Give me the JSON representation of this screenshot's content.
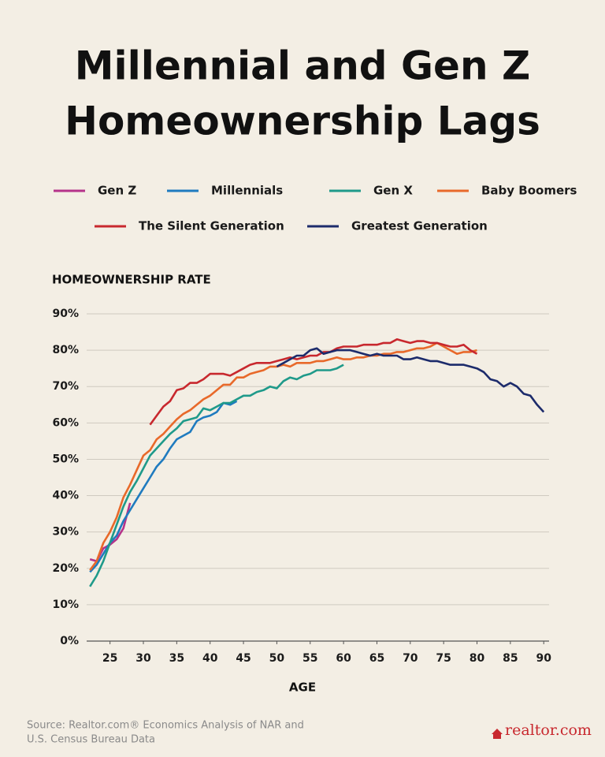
{
  "chart_data": {
    "type": "line",
    "title": [
      "Millennial and Gen Z",
      "Homeownership Lags"
    ],
    "y_label": "HOMEOWNERSHIP RATE",
    "x_label": "AGE",
    "source": [
      "Source: Realtor.com® Economics Analysis of NAR and",
      "U.S. Census Bureau Data"
    ],
    "logo": "realtor.com",
    "xlim": [
      21.5,
      90.8
    ],
    "ylim": [
      0,
      90
    ],
    "xticks": [
      25,
      30,
      35,
      40,
      45,
      50,
      55,
      60,
      65,
      70,
      75,
      80,
      85,
      90
    ],
    "yticks": [
      {
        "value": 0,
        "label": "0%"
      },
      {
        "value": 10,
        "label": "10%"
      },
      {
        "value": 20,
        "label": "20%"
      },
      {
        "value": 30,
        "label": "30%"
      },
      {
        "value": 40,
        "label": "40%"
      },
      {
        "value": 50,
        "label": "50%"
      },
      {
        "value": 60,
        "label": "60%"
      },
      {
        "value": 70,
        "label": "70%"
      },
      {
        "value": 80,
        "label": "80%"
      },
      {
        "value": 90,
        "label": "90%"
      }
    ],
    "grid": true,
    "series": [
      {
        "name": "Gen Z",
        "color": "#b5338a",
        "x": [
          22,
          23,
          24,
          25,
          26,
          27,
          28
        ],
        "values": [
          22.5,
          22,
          25.5,
          26.5,
          28,
          31,
          38
        ]
      },
      {
        "name": "Millennials",
        "color": "#1f7bbf",
        "x": [
          22,
          23,
          24,
          25,
          26,
          27,
          28,
          29,
          30,
          31,
          32,
          33,
          34,
          35,
          36,
          37,
          38,
          39,
          40,
          41,
          42,
          43,
          44
        ],
        "values": [
          19,
          21,
          24,
          27,
          29,
          33,
          36,
          39,
          42,
          45,
          48,
          50,
          53,
          55.5,
          56.5,
          57.5,
          60.5,
          61.5,
          62,
          63,
          65.5,
          65,
          66
        ]
      },
      {
        "name": "Gen X",
        "color": "#1f9a8a",
        "x": [
          22,
          23,
          24,
          25,
          26,
          27,
          28,
          29,
          30,
          31,
          32,
          33,
          34,
          35,
          36,
          37,
          38,
          39,
          40,
          41,
          42,
          43,
          44,
          45,
          46,
          47,
          48,
          49,
          50,
          51,
          52,
          53,
          54,
          55,
          56,
          57,
          58,
          59,
          60
        ],
        "values": [
          15,
          18,
          22,
          27,
          32,
          37,
          41,
          44,
          47.5,
          51,
          53,
          55,
          57,
          58.5,
          60.5,
          61,
          61.5,
          64,
          63.5,
          64.5,
          65.5,
          65.5,
          66.5,
          67.5,
          67.5,
          68.5,
          69,
          70,
          69.5,
          71.5,
          72.5,
          72,
          73,
          73.5,
          74.5,
          74.5,
          74.5,
          75,
          76
        ]
      },
      {
        "name": "Baby Boomers",
        "color": "#e8692a",
        "x": [
          22,
          23,
          24,
          25,
          26,
          27,
          28,
          29,
          30,
          31,
          32,
          33,
          34,
          35,
          36,
          37,
          38,
          39,
          40,
          41,
          42,
          43,
          44,
          45,
          46,
          47,
          48,
          49,
          50,
          51,
          52,
          53,
          54,
          55,
          56,
          57,
          58,
          59,
          60,
          61,
          62,
          63,
          64,
          65,
          66,
          67,
          68,
          69,
          70,
          71,
          72,
          73,
          74,
          75,
          76,
          77,
          78,
          79,
          80
        ],
        "values": [
          19.5,
          22,
          27,
          30,
          34,
          39.5,
          43,
          47,
          51,
          52.5,
          55.5,
          57,
          59,
          61,
          62.5,
          63.5,
          65,
          66.5,
          67.5,
          69,
          70.5,
          70.5,
          72.5,
          72.5,
          73.5,
          74,
          74.5,
          75.5,
          75.5,
          76,
          75.5,
          76.5,
          76.5,
          76.5,
          77,
          77,
          77.5,
          78,
          77.5,
          77.5,
          78,
          78,
          78.5,
          78.5,
          79,
          79,
          79.5,
          79.5,
          80,
          80.5,
          80.5,
          81,
          82,
          81,
          80,
          79,
          79.5,
          79.5,
          80
        ]
      },
      {
        "name": "The Silent Generation",
        "color": "#c8282e",
        "x": [
          31,
          32,
          33,
          34,
          35,
          36,
          37,
          38,
          39,
          40,
          41,
          42,
          43,
          44,
          45,
          46,
          47,
          48,
          49,
          50,
          51,
          52,
          53,
          54,
          55,
          56,
          57,
          58,
          59,
          60,
          61,
          62,
          63,
          64,
          65,
          66,
          67,
          68,
          69,
          70,
          71,
          72,
          73,
          74,
          75,
          76,
          77,
          78,
          79,
          80
        ],
        "values": [
          59.5,
          62,
          64.5,
          66,
          69,
          69.5,
          71,
          71,
          72,
          73.5,
          73.5,
          73.5,
          73,
          74,
          75,
          76,
          76.5,
          76.5,
          76.5,
          77,
          77.5,
          78,
          77.5,
          78,
          78.5,
          78.5,
          79.5,
          79.5,
          80.5,
          81,
          81,
          81,
          81.5,
          81.5,
          81.5,
          82,
          82,
          83,
          82.5,
          82,
          82.5,
          82.5,
          82,
          82,
          81.5,
          81,
          81,
          81.5,
          80,
          79
        ]
      },
      {
        "name": "Greatest Generation",
        "color": "#1c2b6b",
        "x": [
          50,
          51,
          52,
          53,
          54,
          55,
          56,
          57,
          58,
          59,
          60,
          61,
          62,
          63,
          64,
          65,
          66,
          67,
          68,
          69,
          70,
          71,
          72,
          73,
          74,
          75,
          76,
          77,
          78,
          79,
          80,
          81,
          82,
          83,
          84,
          85,
          86,
          87,
          88,
          89,
          90
        ],
        "values": [
          75.5,
          76.5,
          77.5,
          78.5,
          78.5,
          80,
          80.5,
          79,
          79.5,
          80,
          80,
          80,
          79.5,
          79,
          78.5,
          79,
          78.5,
          78.5,
          78.5,
          77.5,
          77.5,
          78,
          77.5,
          77,
          77,
          76.5,
          76,
          76,
          76,
          75.5,
          75,
          74,
          72,
          71.5,
          70,
          71,
          70,
          68,
          67.5,
          65,
          63
        ]
      }
    ]
  }
}
